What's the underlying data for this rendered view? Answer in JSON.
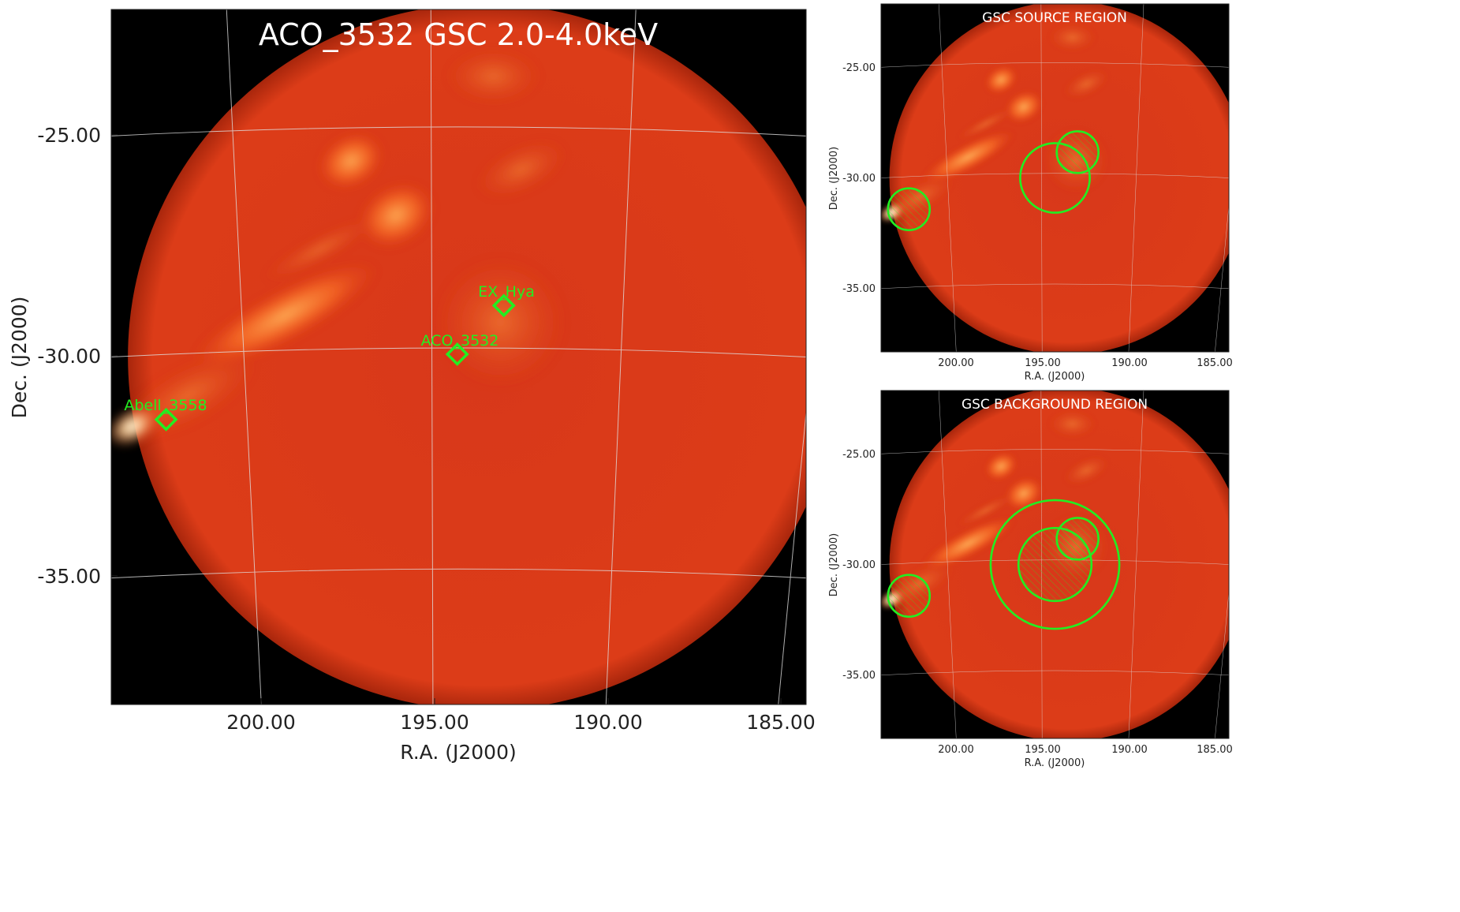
{
  "main": {
    "title": "ACO_3532 GSC 2.0-4.0keV",
    "xlabel": "R.A. (J2000)",
    "ylabel": "Dec. (J2000)",
    "xticks": [
      "200.00",
      "195.00",
      "190.00",
      "185.00"
    ],
    "yticks": [
      "-25.00",
      "-30.00",
      "-35.00"
    ],
    "sources": [
      {
        "name": "EX_Hya",
        "ra": 193.0,
        "dec": -29.2
      },
      {
        "name": "ACO_3532",
        "ra": 194.3,
        "dec": -30.0
      },
      {
        "name": "Abell_3558",
        "ra": 201.8,
        "dec": -31.5
      }
    ]
  },
  "top_panel": {
    "title": "GSC SOURCE REGION",
    "xlabel": "R.A. (J2000)",
    "ylabel": "Dec. (J2000)",
    "xticks": [
      "200.00",
      "195.00",
      "190.00",
      "185.00"
    ],
    "yticks": [
      "-25.00",
      "-30.00",
      "-35.00"
    ]
  },
  "bottom_panel": {
    "title": "GSC BACKGROUND REGION",
    "xlabel": "R.A. (J2000)",
    "ylabel": "Dec. (J2000)",
    "xticks": [
      "200.00",
      "195.00",
      "190.00",
      "185.00"
    ],
    "yticks": [
      "-25.00",
      "-30.00",
      "-35.00"
    ]
  },
  "colors": {
    "map_base": "#d93a14",
    "map_glow": "#ffb060",
    "region": "#22ee22",
    "grid": "#dddddd",
    "background": "#000000"
  }
}
